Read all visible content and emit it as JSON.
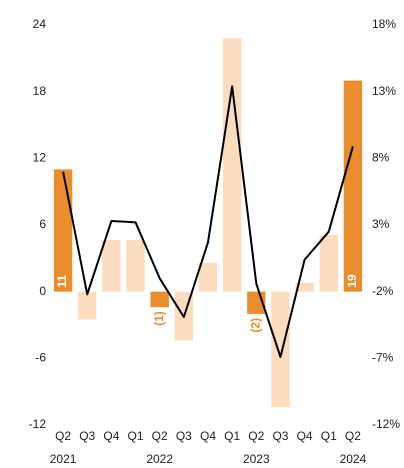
{
  "chart_data": {
    "type": "bar",
    "categories": [
      "Q2",
      "Q3",
      "Q4",
      "Q1",
      "Q2",
      "Q3",
      "Q4",
      "Q1",
      "Q2",
      "Q3",
      "Q4",
      "Q1",
      "Q2"
    ],
    "category_years": [
      "2021",
      null,
      null,
      null,
      "2022",
      null,
      null,
      null,
      "2023",
      null,
      null,
      null,
      "2024"
    ],
    "series": [
      {
        "type": "bar",
        "values": [
          11,
          -2.5,
          4.65,
          4.65,
          -1.4,
          -4.4,
          2.6,
          22.8,
          -2,
          -10.4,
          0.8,
          5.1,
          19
        ],
        "colors": [
          "#ea8d2c",
          "#fbdcbd",
          "#fbdcbd",
          "#fbdcbd",
          "#ea8d2c",
          "#fbdcbd",
          "#fbdcbd",
          "#fbdcbd",
          "#ea8d2c",
          "#fbdcbd",
          "#fbdcbd",
          "#fbdcbd",
          "#ea8d2c"
        ],
        "value_labels": [
          "11",
          null,
          null,
          null,
          "(1)",
          null,
          null,
          null,
          "(2)",
          null,
          null,
          null,
          "19"
        ]
      },
      {
        "type": "line",
        "axis": "y2",
        "color": "#000000",
        "values": [
          7.0,
          -2.2,
          3.3,
          3.2,
          -1.0,
          -3.9,
          1.7,
          13.4,
          -1.4,
          -6.9,
          0.4,
          2.5,
          8.9
        ]
      }
    ],
    "ylim": [
      -12,
      24
    ],
    "yticks": [
      -12,
      -6,
      0,
      6,
      12,
      18,
      24
    ],
    "y2lim": [
      -12,
      18
    ],
    "y2ticks": [
      {
        "value": -12,
        "label": "-12%"
      },
      {
        "value": -7,
        "label": "-7%"
      },
      {
        "value": -2,
        "label": "-2%"
      },
      {
        "value": 3,
        "label": "3%"
      },
      {
        "value": 8,
        "label": "8%"
      },
      {
        "value": 13,
        "label": "13%"
      },
      {
        "value": 18,
        "label": "18%"
      }
    ]
  }
}
